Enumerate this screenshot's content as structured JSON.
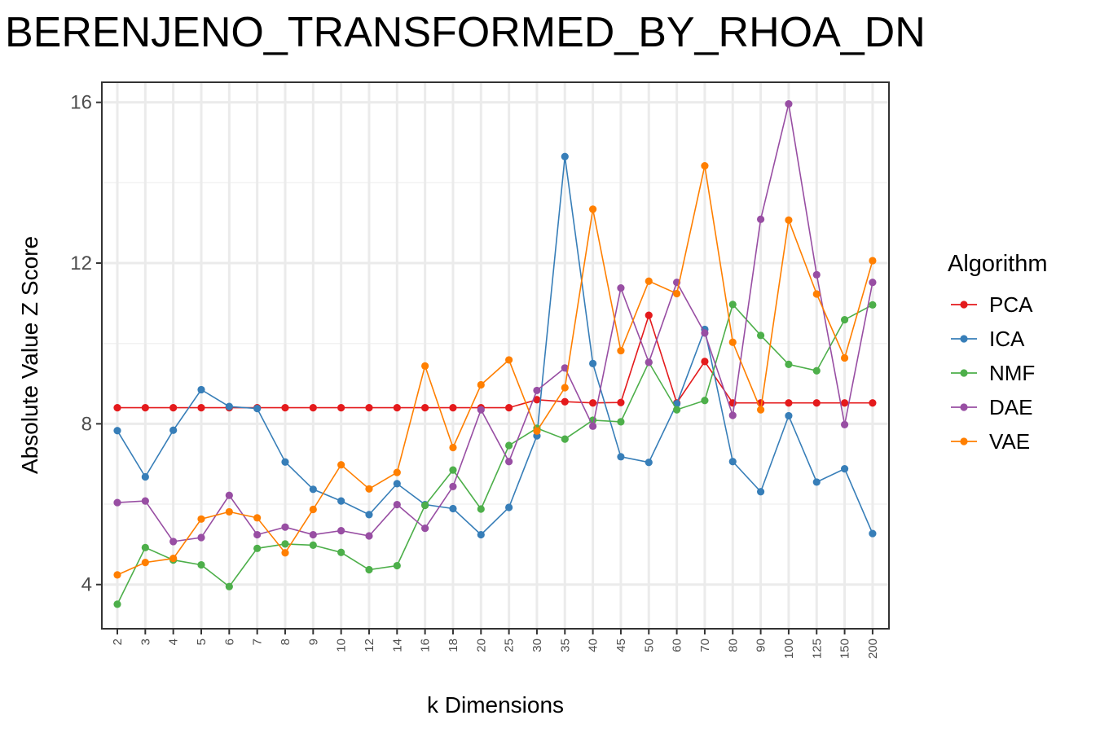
{
  "chart_data": {
    "type": "line",
    "title": "BERENJENO_TRANSFORMED_BY_RHOA_DN",
    "xlabel": "k Dimensions",
    "ylabel": "Absolute Value Z Score",
    "categories": [
      "2",
      "3",
      "4",
      "5",
      "6",
      "7",
      "8",
      "9",
      "10",
      "12",
      "14",
      "16",
      "18",
      "20",
      "25",
      "30",
      "35",
      "40",
      "45",
      "50",
      "60",
      "70",
      "80",
      "90",
      "100",
      "125",
      "150",
      "200"
    ],
    "ylim": [
      2.9,
      16.5
    ],
    "yticks": [
      4,
      8,
      12,
      16
    ],
    "grid": true,
    "legend": {
      "title": "Algorithm",
      "position": "right"
    },
    "series": [
      {
        "name": "PCA",
        "color": "#e41a1c",
        "values": [
          8.4,
          8.4,
          8.4,
          8.4,
          8.4,
          8.4,
          8.4,
          8.4,
          8.4,
          8.4,
          8.4,
          8.4,
          8.4,
          8.4,
          8.4,
          8.6,
          8.55,
          8.52,
          8.53,
          10.7,
          8.52,
          9.55,
          8.52,
          8.52,
          8.52,
          8.52,
          8.52,
          8.52
        ]
      },
      {
        "name": "ICA",
        "color": "#377eb8",
        "values": [
          7.83,
          6.68,
          7.84,
          8.85,
          8.43,
          8.38,
          7.05,
          6.37,
          6.08,
          5.74,
          6.51,
          5.99,
          5.89,
          5.24,
          5.92,
          7.7,
          14.65,
          9.5,
          7.18,
          7.04,
          8.5,
          10.35,
          7.06,
          6.31,
          8.2,
          6.55,
          6.88,
          5.27
        ]
      },
      {
        "name": "NMF",
        "color": "#4daf4a",
        "values": [
          3.51,
          4.92,
          4.61,
          4.49,
          3.95,
          4.9,
          5.01,
          4.98,
          4.8,
          4.37,
          4.47,
          5.97,
          6.85,
          5.88,
          7.46,
          7.89,
          7.62,
          8.09,
          8.05,
          9.53,
          8.35,
          8.58,
          10.97,
          10.2,
          9.48,
          9.32,
          10.59,
          10.96
        ]
      },
      {
        "name": "DAE",
        "color": "#984ea3",
        "values": [
          6.04,
          6.08,
          5.07,
          5.17,
          6.22,
          5.24,
          5.43,
          5.24,
          5.34,
          5.21,
          5.99,
          5.4,
          6.44,
          8.35,
          7.06,
          8.83,
          9.39,
          7.94,
          11.38,
          9.53,
          11.52,
          10.26,
          8.21,
          13.09,
          15.96,
          11.71,
          7.98,
          11.52
        ]
      },
      {
        "name": "VAE",
        "color": "#ff7f00",
        "values": [
          4.24,
          4.55,
          4.65,
          5.63,
          5.81,
          5.66,
          4.79,
          5.87,
          6.98,
          6.38,
          6.79,
          9.44,
          7.41,
          8.97,
          9.59,
          7.82,
          8.9,
          13.34,
          9.82,
          11.55,
          11.24,
          14.42,
          10.03,
          8.35,
          13.07,
          11.23,
          9.64,
          12.06
        ]
      }
    ]
  }
}
